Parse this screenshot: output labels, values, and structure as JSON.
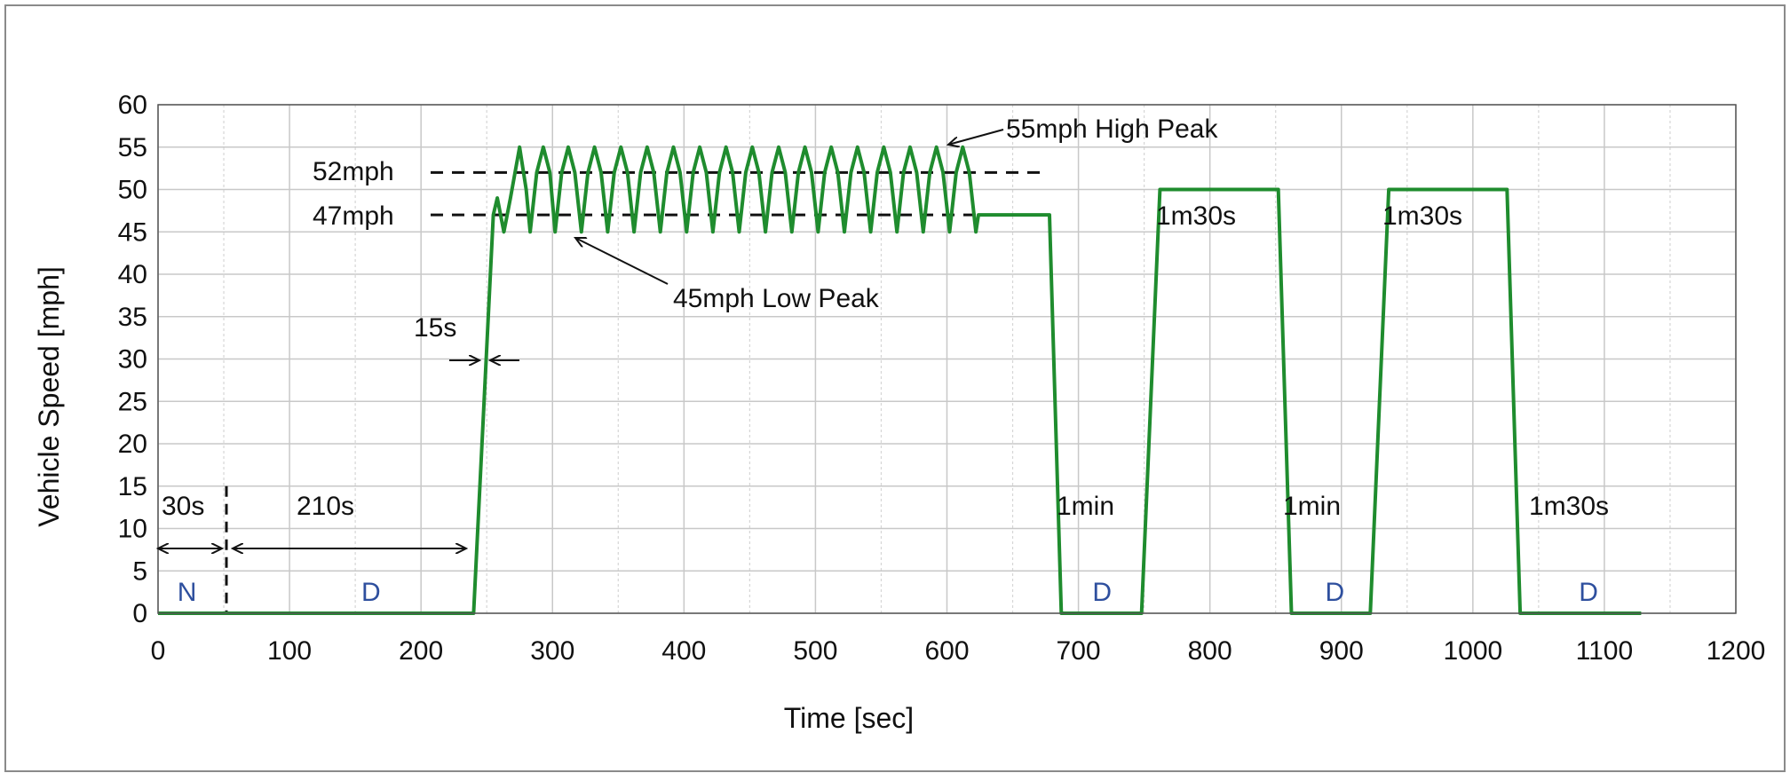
{
  "chart_data": {
    "type": "line",
    "xlabel": "Time [sec]",
    "ylabel": "Vehicle Speed [mph]",
    "xlim": [
      0,
      1200
    ],
    "ylim": [
      0,
      60
    ],
    "x_ticks": [
      0,
      100,
      200,
      300,
      400,
      500,
      600,
      700,
      800,
      900,
      1000,
      1100,
      1200
    ],
    "y_ticks": [
      0,
      5,
      10,
      15,
      20,
      25,
      30,
      35,
      40,
      45,
      50,
      55,
      60
    ],
    "grid": true,
    "line_color": "#1f8c2e",
    "series": [
      {
        "x": [
          0,
          240,
          255,
          258,
          263,
          268,
          275,
          280,
          283,
          288,
          293,
          298,
          302,
          307,
          312,
          317,
          322,
          327,
          332,
          337,
          342,
          347,
          352,
          357,
          362,
          367,
          372,
          377,
          382,
          387,
          392,
          397,
          402,
          407,
          412,
          417,
          422,
          427,
          432,
          437,
          442,
          447,
          452,
          457,
          462,
          467,
          472,
          477,
          482,
          487,
          492,
          497,
          502,
          507,
          512,
          517,
          522,
          527,
          532,
          537,
          542,
          547,
          552,
          557,
          562,
          567,
          572,
          577,
          582,
          587,
          592,
          597,
          602,
          607,
          612,
          617,
          622,
          624,
          625,
          640,
          678,
          687,
          748,
          762,
          852,
          862,
          922,
          936,
          1026,
          1036,
          1128
        ],
        "y": [
          0,
          0,
          47,
          49,
          45,
          49,
          55,
          50,
          45,
          52,
          55,
          52,
          45,
          52,
          55,
          52,
          45,
          52,
          55,
          52,
          45,
          52,
          55,
          52,
          45,
          52,
          55,
          52,
          45,
          52,
          55,
          52,
          45,
          52,
          55,
          52,
          45,
          52,
          55,
          52,
          45,
          52,
          55,
          52,
          45,
          52,
          55,
          52,
          45,
          52,
          55,
          52,
          45,
          52,
          55,
          52,
          45,
          52,
          55,
          52,
          45,
          52,
          55,
          52,
          45,
          52,
          55,
          52,
          45,
          52,
          55,
          52,
          45,
          52,
          55,
          52,
          45,
          47,
          47,
          47,
          47,
          0,
          0,
          50,
          50,
          0,
          0,
          50,
          50,
          0,
          0
        ]
      }
    ],
    "reference_lines": [
      {
        "label": "52mph",
        "y": 52,
        "x_start": 0,
        "x_end": 640
      },
      {
        "label": "47mph",
        "y": 47,
        "x_start": 0,
        "x_end": 640
      }
    ],
    "annotations": [
      {
        "text": "55mph High Peak"
      },
      {
        "text": "45mph Low Peak"
      },
      {
        "text": "15s"
      },
      {
        "text": "30s"
      },
      {
        "text": "210s"
      },
      {
        "text": "1m30s"
      },
      {
        "text": "1m30s"
      },
      {
        "text": "1min"
      },
      {
        "text": "1min"
      },
      {
        "text": "1m30s"
      }
    ],
    "mode_labels": [
      {
        "text": "N",
        "x": 22
      },
      {
        "text": "D",
        "x": 162
      },
      {
        "text": "D",
        "x": 718
      },
      {
        "text": "D",
        "x": 895
      },
      {
        "text": "D",
        "x": 1088
      }
    ],
    "marker_line_x": 52
  }
}
